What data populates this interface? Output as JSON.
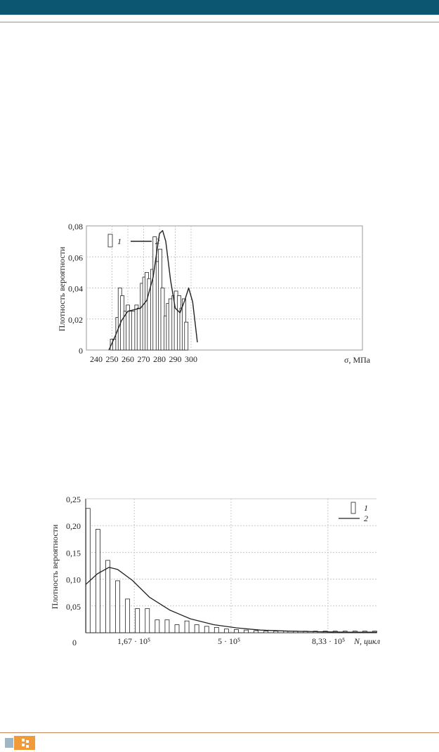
{
  "colors": {
    "header": "#0d5671",
    "rule": "#c8845a",
    "ink": "#222222",
    "grid": "#c8c8c8"
  },
  "chart_data": [
    {
      "type": "bar",
      "ylabel": "Плотность вероятности",
      "xlabel": "σ, МПа",
      "xlim": [
        240,
        302
      ],
      "ylim": [
        0,
        0.08
      ],
      "xticks": [
        "240",
        "250",
        "260",
        "270",
        "280",
        "290",
        "300"
      ],
      "yticks": [
        "0",
        "0,02",
        "0,04",
        "0,06",
        "0,08"
      ],
      "grid": true,
      "legend": {
        "placement": "top-left",
        "items": [
          "1",
          "2"
        ]
      },
      "series": [
        {
          "name": "1",
          "type": "bar",
          "x": [
            250,
            251.5,
            253.5,
            255,
            256.5,
            258.5,
            260,
            262,
            263.5,
            265.5,
            267,
            269,
            270.5,
            272,
            273.5,
            275.5,
            277,
            279,
            280.5,
            282,
            284,
            285.5,
            287,
            289,
            290.5,
            292.5,
            294,
            295.5,
            297,
            298.5,
            300.5,
            302,
            303.5
          ],
          "values": [
            0.007,
            0.007,
            0.021,
            0.04,
            0.035,
            0.025,
            0.029,
            0.025,
            0.025,
            0.029,
            0.027,
            0.043,
            0.047,
            0.05,
            0.046,
            0.052,
            0.073,
            0.057,
            0.065,
            0.04,
            0.022,
            0.03,
            0.033,
            0.035,
            0.038,
            0.035,
            0.027,
            0.033,
            0.018,
            0,
            0,
            0,
            0
          ]
        },
        {
          "name": "2",
          "type": "line",
          "x": [
            248,
            252,
            256,
            260,
            264,
            268,
            272,
            276,
            280,
            282,
            284,
            287,
            290,
            293,
            296,
            298.5,
            301,
            304
          ],
          "values": [
            0,
            0.009,
            0.019,
            0.025,
            0.026,
            0.027,
            0.032,
            0.047,
            0.075,
            0.077,
            0.07,
            0.045,
            0.027,
            0.024,
            0.032,
            0.04,
            0.031,
            0.005
          ]
        }
      ]
    },
    {
      "type": "bar",
      "ylabel": "Плотность вероятности",
      "xlabel": "N, цикл",
      "xlim": [
        0,
        1000000
      ],
      "ylim": [
        0,
        0.25
      ],
      "xticks": [
        "0",
        "1,67 · 10⁵",
        "5 · 10⁵",
        "8,33 · 10⁵"
      ],
      "yticks": [
        "0,05",
        "0,10",
        "0,15",
        "0,20",
        "0,25"
      ],
      "grid": true,
      "legend": {
        "placement": "top-right",
        "items": [
          "1",
          "2"
        ]
      },
      "series": [
        {
          "name": "1",
          "type": "bar",
          "x": [
            8000,
            42000,
            76000,
            110000,
            144000,
            178000,
            212000,
            246000,
            280000,
            314000,
            348000,
            382000,
            416000,
            450000,
            484000,
            518000,
            552000,
            586000,
            620000,
            654000,
            688000,
            722000,
            756000,
            790000,
            824000,
            858000,
            892000,
            926000,
            960000,
            994000
          ],
          "values": [
            0.232,
            0.193,
            0.135,
            0.097,
            0.063,
            0.045,
            0.045,
            0.024,
            0.024,
            0.015,
            0.022,
            0.015,
            0.012,
            0.01,
            0.007,
            0.006,
            0.005,
            0.004,
            0.003,
            0.003,
            0.003,
            0.003,
            0.003,
            0.003,
            0.003,
            0.003,
            0.003,
            0.003,
            0.003,
            0.003
          ]
        },
        {
          "name": "2",
          "type": "line",
          "x": [
            0,
            40000,
            80000,
            110000,
            160000,
            220000,
            290000,
            360000,
            440000,
            520000,
            600000,
            700000,
            800000,
            900000,
            1000000
          ],
          "values": [
            0.09,
            0.11,
            0.122,
            0.118,
            0.098,
            0.066,
            0.042,
            0.026,
            0.015,
            0.009,
            0.005,
            0.003,
            0.002,
            0.001,
            0.001
          ]
        }
      ]
    }
  ]
}
